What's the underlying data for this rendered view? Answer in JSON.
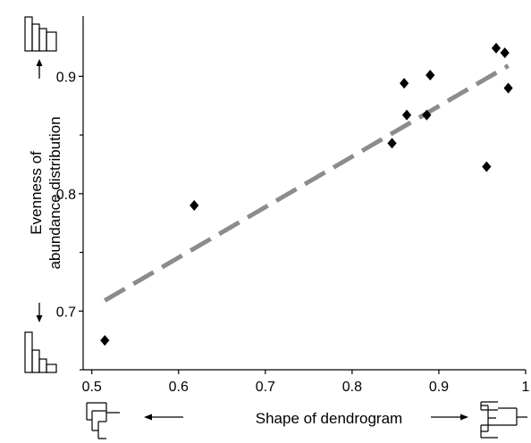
{
  "chart_data": {
    "type": "scatter",
    "xlabel": "Shape of dendrogram",
    "ylabel_lines": [
      "Evenness of",
      "abundance distribution"
    ],
    "xlim": [
      0.49,
      1.0
    ],
    "ylim": [
      0.65,
      0.9513
    ],
    "xticks": [
      0.5,
      0.6,
      0.7,
      0.8,
      0.9,
      1.0
    ],
    "xtick_labels": [
      "0.5",
      "0.6",
      "0.7",
      "0.8",
      "0.9",
      "1"
    ],
    "yticks": [
      0.7,
      0.8,
      0.9
    ],
    "ytick_labels": [
      "0.7",
      "0.8",
      "0.9"
    ],
    "points": [
      {
        "x": 0.515,
        "y": 0.675
      },
      {
        "x": 0.618,
        "y": 0.79
      },
      {
        "x": 0.846,
        "y": 0.843
      },
      {
        "x": 0.86,
        "y": 0.894
      },
      {
        "x": 0.863,
        "y": 0.867
      },
      {
        "x": 0.886,
        "y": 0.867
      },
      {
        "x": 0.89,
        "y": 0.901
      },
      {
        "x": 0.955,
        "y": 0.823
      },
      {
        "x": 0.966,
        "y": 0.924
      },
      {
        "x": 0.976,
        "y": 0.92
      },
      {
        "x": 0.98,
        "y": 0.89
      }
    ],
    "trendline": {
      "x": [
        0.515,
        0.98
      ],
      "y": [
        0.709,
        0.909
      ],
      "style": "dashed",
      "color": "#8c8c8c"
    },
    "grid": false,
    "marker": "diamond",
    "marker_color": "#000000"
  }
}
